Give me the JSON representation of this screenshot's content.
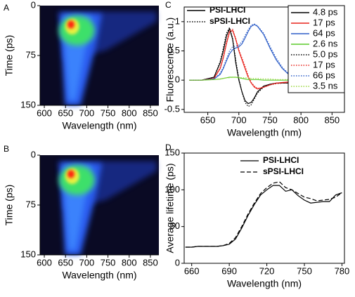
{
  "chart_data": [
    {
      "type": "image",
      "label": "A",
      "xlabel": "Wavelength (nm)",
      "ylabel": "Time (ps)",
      "xlim": [
        590,
        870
      ],
      "xticks": [
        600,
        650,
        700,
        750,
        800,
        850
      ],
      "ylim": [
        150,
        0
      ],
      "yticks": [
        0,
        75,
        150
      ]
    },
    {
      "type": "image",
      "label": "B",
      "xlabel": "Wavelength (nm)",
      "ylabel": "Time (ps)",
      "xlim": [
        590,
        870
      ],
      "xticks": [
        600,
        650,
        700,
        750,
        800,
        850
      ],
      "ylim": [
        150,
        0
      ],
      "yticks": [
        0,
        75,
        150
      ]
    },
    {
      "type": "line",
      "label": "C",
      "xlabel": "Wavelength (nm)",
      "ylabel": "Fluorescence (a.u.)",
      "xlim": [
        612,
        870
      ],
      "xticks": [
        650,
        700,
        750,
        800,
        850
      ],
      "ylim": [
        -0.55,
        1.25
      ],
      "yticks": [
        -0.5,
        0,
        0.5,
        1
      ],
      "legend": "upper right",
      "style_legend": [
        {
          "name": "PSI-LHCI",
          "dash": "solid"
        },
        {
          "name": "sPSI-LHCI",
          "dash": "dotted"
        }
      ],
      "x": [
        620,
        640,
        660,
        670,
        675,
        680,
        685,
        690,
        695,
        700,
        705,
        710,
        715,
        720,
        725,
        730,
        740,
        750,
        760,
        770,
        780,
        800,
        820
      ],
      "series": [
        {
          "name": "4.8 ps",
          "color": "#000000",
          "dash": "solid",
          "values": [
            0,
            0,
            0.05,
            0.3,
            0.5,
            0.75,
            0.88,
            0.7,
            0.3,
            0.0,
            -0.2,
            -0.35,
            -0.4,
            -0.38,
            -0.3,
            -0.2,
            -0.1,
            -0.07,
            -0.05,
            -0.05,
            -0.05,
            -0.03,
            -0.02
          ]
        },
        {
          "name": "17 ps",
          "color": "#e8231c",
          "dash": "solid",
          "values": [
            0,
            0,
            0.03,
            0.2,
            0.38,
            0.62,
            0.82,
            0.85,
            0.7,
            0.5,
            0.35,
            0.2,
            0.05,
            -0.05,
            -0.12,
            -0.15,
            -0.12,
            -0.08,
            -0.05,
            -0.04,
            -0.03,
            -0.02,
            -0.01
          ]
        },
        {
          "name": "64 ps",
          "color": "#2f5fc8",
          "dash": "solid",
          "values": [
            0,
            0,
            0.02,
            0.1,
            0.2,
            0.33,
            0.45,
            0.52,
            0.55,
            0.57,
            0.62,
            0.72,
            0.83,
            0.92,
            0.95,
            0.92,
            0.78,
            0.55,
            0.35,
            0.2,
            0.1,
            0.03,
            0
          ]
        },
        {
          "name": "2.6 ns",
          "color": "#5ccc2c",
          "dash": "solid",
          "values": [
            0,
            0,
            0.01,
            0.02,
            0.03,
            0.04,
            0.05,
            0.05,
            0.05,
            0.04,
            0.03,
            0.02,
            0.01,
            0.01,
            0.01,
            0.01,
            0,
            0,
            0,
            0,
            0,
            0,
            0
          ]
        },
        {
          "name": "5.0 ps",
          "color": "#000000",
          "dash": "dotted",
          "values": [
            0,
            0,
            0.05,
            0.32,
            0.55,
            0.8,
            0.9,
            0.72,
            0.35,
            0.02,
            -0.2,
            -0.38,
            -0.45,
            -0.42,
            -0.32,
            -0.22,
            -0.12,
            -0.08,
            -0.06,
            -0.05,
            -0.05,
            -0.03,
            -0.02
          ]
        },
        {
          "name": "17 ps",
          "color": "#e8231c",
          "dash": "dotted",
          "values": [
            0,
            0,
            0.03,
            0.22,
            0.4,
            0.65,
            0.85,
            0.87,
            0.72,
            0.52,
            0.38,
            0.24,
            0.08,
            -0.04,
            -0.1,
            -0.14,
            -0.12,
            -0.08,
            -0.06,
            -0.05,
            -0.04,
            -0.02,
            -0.01
          ]
        },
        {
          "name": "66 ps",
          "color": "#2f5fc8",
          "dash": "dotted",
          "values": [
            0,
            0,
            0.02,
            0.12,
            0.22,
            0.36,
            0.5,
            0.57,
            0.58,
            0.6,
            0.66,
            0.76,
            0.86,
            0.94,
            0.96,
            0.93,
            0.8,
            0.58,
            0.38,
            0.22,
            0.11,
            0.03,
            0
          ]
        },
        {
          "name": "3.5 ns",
          "color": "#9ad63c",
          "dash": "dotted",
          "values": [
            0,
            0,
            0.01,
            0.02,
            0.03,
            0.04,
            0.04,
            0.05,
            0.05,
            0.05,
            0.04,
            0.04,
            0.04,
            0.03,
            0.03,
            0.03,
            0.02,
            0.02,
            0.01,
            0.01,
            0.01,
            0,
            0
          ]
        }
      ]
    },
    {
      "type": "line",
      "label": "D",
      "xlabel": "Wavelength (nm)",
      "ylabel": "Average lifetime (ps)",
      "xlim": [
        654,
        782
      ],
      "xticks": [
        660,
        690,
        720,
        750,
        780
      ],
      "ylim": [
        0,
        150
      ],
      "yticks": [
        0,
        50,
        100,
        150
      ],
      "legend": "upper center",
      "x": [
        655,
        660,
        665,
        670,
        675,
        680,
        685,
        690,
        695,
        700,
        705,
        710,
        715,
        720,
        725,
        730,
        735,
        740,
        745,
        750,
        755,
        760,
        765,
        770,
        775,
        780
      ],
      "series": [
        {
          "name": "PSI-LHCI",
          "color": "#000000",
          "dash": "solid",
          "values": [
            22,
            22,
            23,
            23,
            23,
            23,
            24,
            26,
            33,
            48,
            65,
            80,
            93,
            100,
            106,
            106,
            98,
            100,
            92,
            86,
            82,
            83,
            84,
            84,
            93,
            96
          ]
        },
        {
          "name": "sPSI-LHCI",
          "color": "#000000",
          "dash": "dashed",
          "values": [
            22,
            22,
            23,
            23,
            23,
            23,
            24,
            27,
            35,
            50,
            67,
            82,
            95,
            103,
            109,
            111,
            103,
            100,
            95,
            90,
            88,
            85,
            86,
            87,
            90,
            96
          ]
        }
      ]
    }
  ]
}
